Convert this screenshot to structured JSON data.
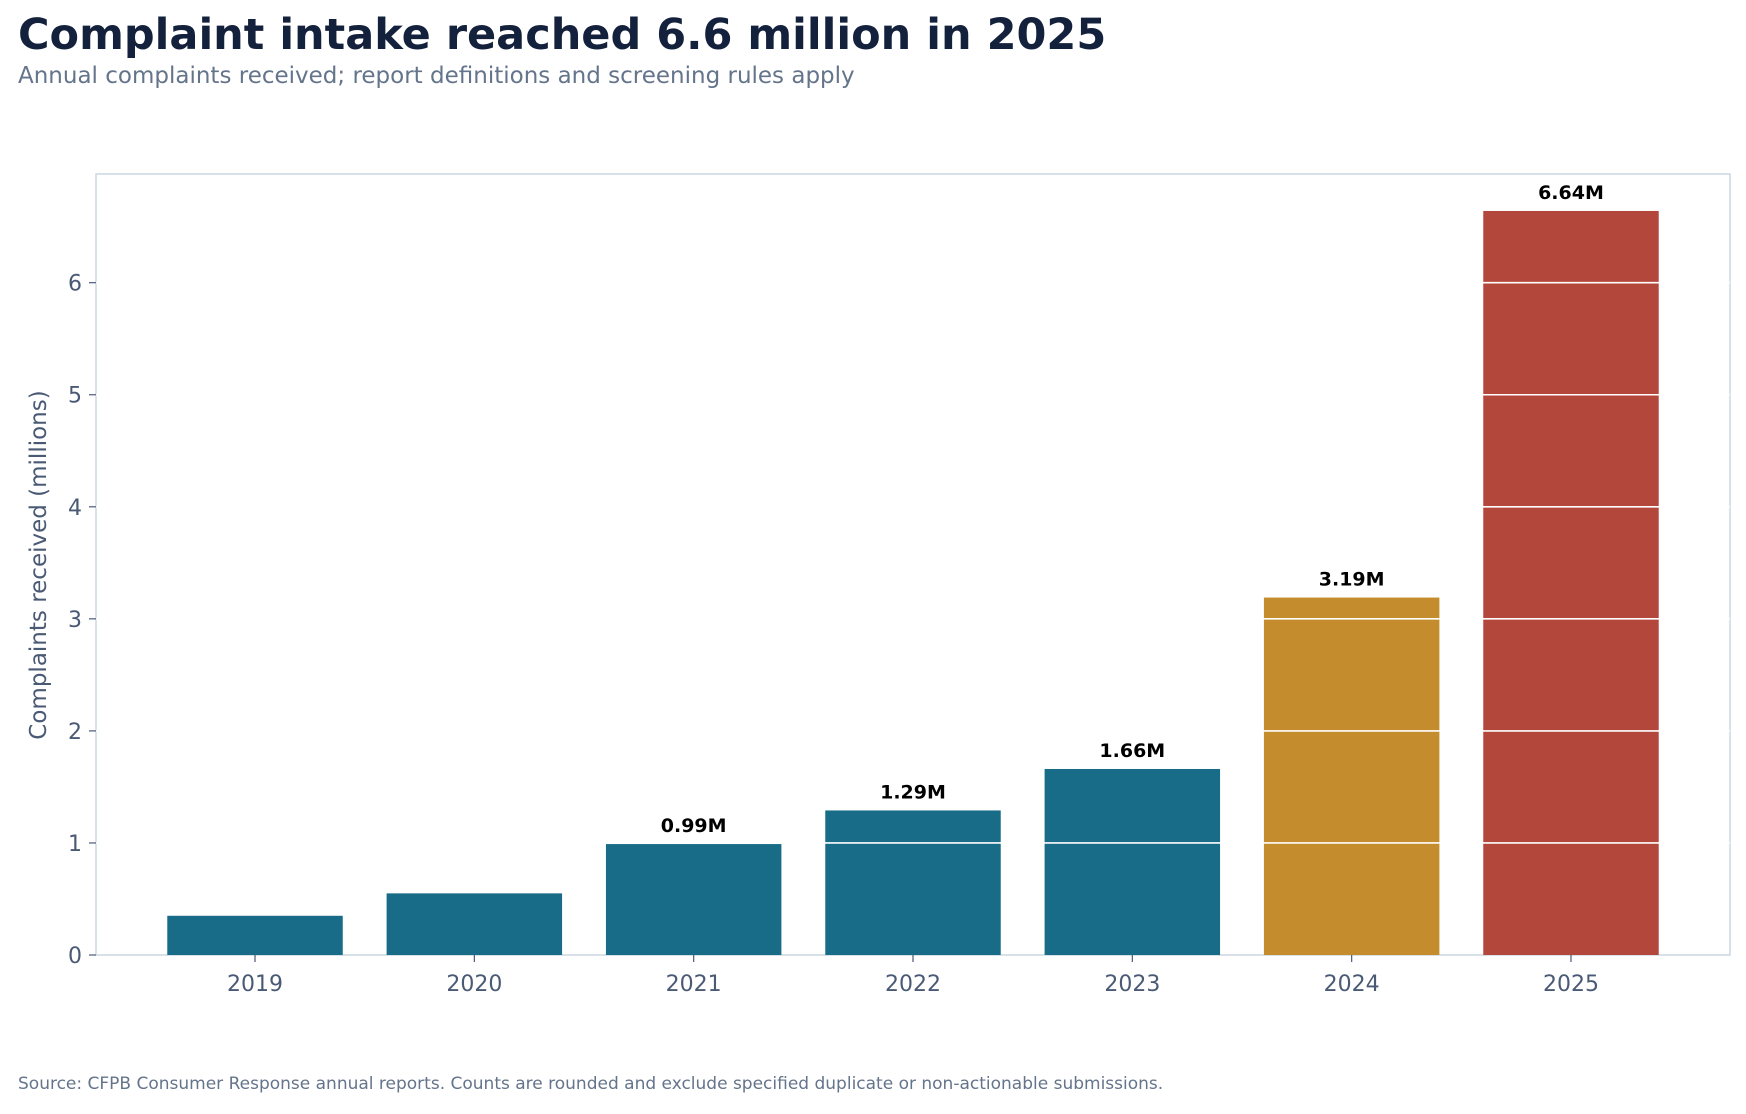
{
  "header": {
    "title": "Complaint intake reached 6.6 million in 2025",
    "subtitle": "Annual complaints received; report definitions and screening rules apply"
  },
  "footer": {
    "source": "Source: CFPB Consumer Response annual reports. Counts are rounded and exclude specified duplicate or non-actionable submissions."
  },
  "chart_data": {
    "type": "bar",
    "categories": [
      "2019",
      "2020",
      "2021",
      "2022",
      "2023",
      "2024",
      "2025"
    ],
    "values": [
      0.35,
      0.55,
      0.99,
      1.29,
      1.66,
      3.19,
      6.64
    ],
    "data_labels": [
      "",
      "",
      "0.99M",
      "1.29M",
      "1.66M",
      "3.19M",
      "6.64M"
    ],
    "bar_colors": [
      "#186c87",
      "#186c87",
      "#186c87",
      "#186c87",
      "#186c87",
      "#c48c2c",
      "#b4473b"
    ],
    "title": "Complaint intake reached 6.6 million in 2025",
    "subtitle": "Annual complaints received; report definitions and screening rules apply",
    "xlabel": "",
    "ylabel": "Complaints received (millions)",
    "ylim": [
      0,
      6.97
    ],
    "yticks": [
      0,
      1,
      2,
      3,
      4,
      5,
      6
    ],
    "grid": true,
    "legend": "none"
  }
}
